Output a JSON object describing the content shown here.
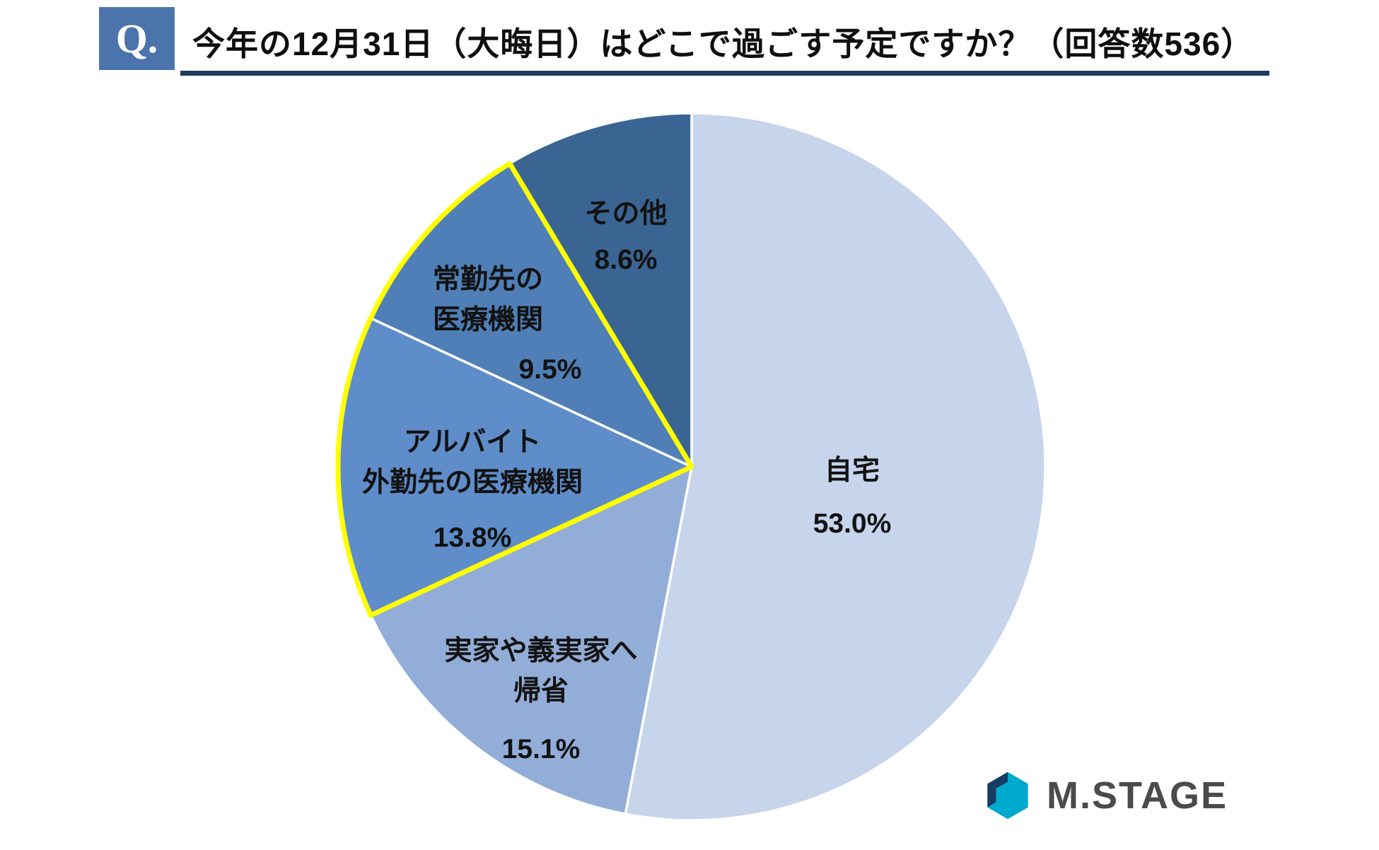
{
  "header": {
    "q_label": "Q.",
    "title": "今年の12月31日（大晦日）はどこで過ごす予定ですか？（回答数536）"
  },
  "chart_data": {
    "type": "pie",
    "title": "今年の12月31日（大晦日）はどこで過ごす予定ですか？",
    "respondents_label": "回答数536",
    "start_angle_deg": 0,
    "direction": "clockwise",
    "slice_border_color": "#ffffff",
    "highlight_outline_color": "#ffff00",
    "slices": [
      {
        "label": "自宅",
        "label_lines": [
          "自宅"
        ],
        "value": 53.0,
        "percent_text": "53.0%",
        "color": "#c6d4ec",
        "highlight": false
      },
      {
        "label": "実家や義実家へ帰省",
        "label_lines": [
          "実家や義実家へ",
          "帰省"
        ],
        "value": 15.1,
        "percent_text": "15.1%",
        "color": "#92aed8",
        "highlight": false
      },
      {
        "label": "アルバイト外勤先の医療機関",
        "label_lines": [
          "アルバイト",
          "外勤先の医療機関"
        ],
        "value": 13.8,
        "percent_text": "13.8%",
        "color": "#5e8dc9",
        "highlight": true
      },
      {
        "label": "常勤先の医療機関",
        "label_lines": [
          "常勤先の",
          "医療機関"
        ],
        "value": 9.5,
        "percent_text": "9.5%",
        "color": "#4f7fb6",
        "highlight": true
      },
      {
        "label": "その他",
        "label_lines": [
          "その他"
        ],
        "value": 8.6,
        "percent_text": "8.6%",
        "color": "#3a6593",
        "highlight": false
      }
    ]
  },
  "logo": {
    "text": "M.STAGE",
    "icon": "hexagon-logo-icon",
    "colors": {
      "cyan": "#00a9ce",
      "navy": "#183a63",
      "text": "#4b4b4d"
    }
  }
}
